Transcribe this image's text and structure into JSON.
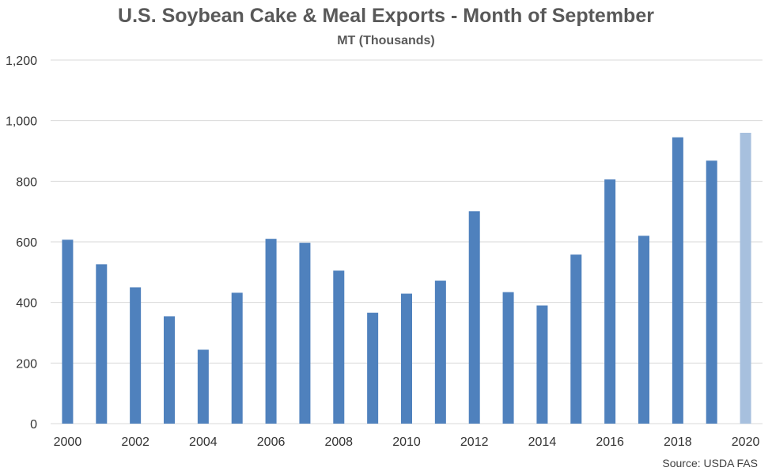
{
  "chart_data": {
    "type": "bar",
    "title": "U.S. Soybean Cake & Meal Exports - Month of September",
    "subtitle": "MT (Thousands)",
    "categories": [
      "2000",
      "2001",
      "2002",
      "2003",
      "2004",
      "2005",
      "2006",
      "2007",
      "2008",
      "2009",
      "2010",
      "2011",
      "2012",
      "2013",
      "2014",
      "2015",
      "2016",
      "2017",
      "2018",
      "2019",
      "2020"
    ],
    "values": [
      607,
      526,
      450,
      354,
      244,
      432,
      610,
      597,
      505,
      366,
      429,
      472,
      701,
      434,
      390,
      558,
      806,
      620,
      945,
      868,
      960
    ],
    "x_tick_labels": [
      "2000",
      "2002",
      "2004",
      "2006",
      "2008",
      "2010",
      "2012",
      "2014",
      "2016",
      "2018",
      "2020"
    ],
    "y_tick_labels": [
      "0",
      "200",
      "400",
      "600",
      "800",
      "1,000",
      "1,200"
    ],
    "ylim": [
      0,
      1200
    ],
    "y_tick_step": 200,
    "grid": true,
    "legend": "none",
    "colors": {
      "bar": "#4f81bd",
      "highlight_bar": "#a7c0de",
      "grid": "#d9d9d9"
    },
    "highlight_category": "2020",
    "source": "Source: USDA FAS"
  }
}
